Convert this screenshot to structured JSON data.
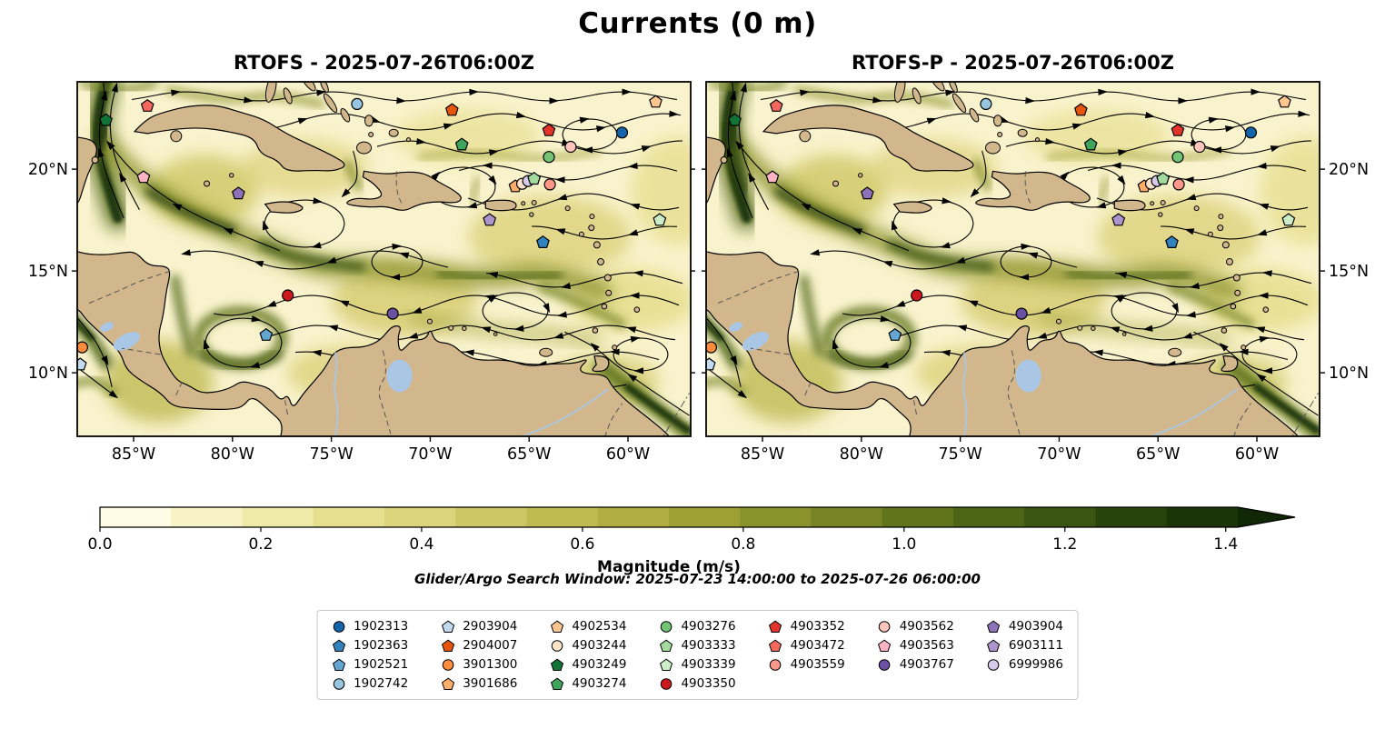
{
  "chart_data": {
    "type": "heatmap",
    "title": "Currents (0 m)",
    "panels": [
      {
        "title": "RTOFS - 2025-07-26T06:00Z"
      },
      {
        "title": "RTOFS-P - 2025-07-26T06:00Z"
      }
    ],
    "x_ticks": [
      "85°W",
      "80°W",
      "75°W",
      "70°W",
      "65°W",
      "60°W"
    ],
    "y_ticks": [
      "20°N",
      "15°N",
      "10°N"
    ],
    "colorbar": {
      "label": "Magnitude (m/s)",
      "ticks": [
        "0.0",
        "0.2",
        "0.4",
        "0.6",
        "0.8",
        "1.0",
        "1.2",
        "1.4"
      ],
      "min": 0.0,
      "extended_max": true
    },
    "subtitle": "Glider/Argo Search Window: 2025-07-23 14:00:00 to 2025-07-26 06:00:00",
    "region": {
      "lon_min": -87.9,
      "lon_max": -56.8,
      "lat_min": 6.9,
      "lat_max": 24.3
    },
    "notes": "Two-panel ocean current magnitude field with streamlines and glider/Argo float positions"
  },
  "axes": {
    "lon_values": [
      -85,
      -80,
      -75,
      -70,
      -65,
      -60
    ],
    "lat_values": [
      20,
      15,
      10
    ]
  },
  "colorbar_style": {
    "colors": [
      "#fdfbe3",
      "#f7f3c6",
      "#f0eaa9",
      "#e7df90",
      "#dcd37a",
      "#cfc765",
      "#c0ba52",
      "#b0ae42",
      "#9ea036",
      "#8a922c",
      "#768424",
      "#61741d",
      "#4d6517",
      "#3a5412",
      "#29430d",
      "#1b3509"
    ],
    "extend_color": "#112806",
    "tick_values": [
      0,
      0.2,
      0.4,
      0.6,
      0.8,
      1.0,
      1.2,
      1.4
    ]
  },
  "map_style": {
    "land": "#d3b78c",
    "ocean": "#f9f3cd",
    "coast": "#000000",
    "lake": "#a9c6e4",
    "river": "#a9c6e4",
    "border": "#555555",
    "streamline": "#000000"
  },
  "legend": {
    "columns": [
      4,
      4,
      4,
      4,
      3,
      3,
      3
    ],
    "items": [
      {
        "id": "1902313",
        "color": "#1464ab",
        "shape": "circle"
      },
      {
        "id": "1902363",
        "color": "#3282be",
        "shape": "pentagon"
      },
      {
        "id": "1902521",
        "color": "#64a6d2",
        "shape": "pentagon"
      },
      {
        "id": "1902742",
        "color": "#97c4df",
        "shape": "circle"
      },
      {
        "id": "2903904",
        "color": "#c3daee",
        "shape": "pentagon"
      },
      {
        "id": "2904007",
        "color": "#e6550d",
        "shape": "pentagon"
      },
      {
        "id": "3901300",
        "color": "#fd8c3c",
        "shape": "circle"
      },
      {
        "id": "3901686",
        "color": "#fdae6b",
        "shape": "pentagon"
      },
      {
        "id": "4902534",
        "color": "#fdc58f",
        "shape": "pentagon"
      },
      {
        "id": "4903244",
        "color": "#fde4c8",
        "shape": "circle"
      },
      {
        "id": "4903249",
        "color": "#117436",
        "shape": "pentagon"
      },
      {
        "id": "4903274",
        "color": "#3fa45c",
        "shape": "pentagon"
      },
      {
        "id": "4903276",
        "color": "#74c476",
        "shape": "circle"
      },
      {
        "id": "4903333",
        "color": "#a3da9d",
        "shape": "pentagon"
      },
      {
        "id": "4903339",
        "color": "#cdecc8",
        "shape": "pentagon"
      },
      {
        "id": "4903350",
        "color": "#cb181d",
        "shape": "circle"
      },
      {
        "id": "4903352",
        "color": "#e3342b",
        "shape": "pentagon"
      },
      {
        "id": "4903472",
        "color": "#f4695c",
        "shape": "pentagon"
      },
      {
        "id": "4903559",
        "color": "#fc9889",
        "shape": "circle"
      },
      {
        "id": "4903562",
        "color": "#fdc5bc",
        "shape": "circle"
      },
      {
        "id": "4903563",
        "color": "#fbb4c4",
        "shape": "pentagon"
      },
      {
        "id": "4903767",
        "color": "#6a51a3",
        "shape": "circle"
      },
      {
        "id": "4903904",
        "color": "#8d72b9",
        "shape": "pentagon"
      },
      {
        "id": "6903111",
        "color": "#ad94cd",
        "shape": "pentagon"
      },
      {
        "id": "6999986",
        "color": "#d7c9e8",
        "shape": "circle"
      }
    ]
  },
  "markers": [
    {
      "id": "4903472",
      "lon": -84.3,
      "lat": 23.1
    },
    {
      "id": "1902742",
      "lon": -73.7,
      "lat": 23.2
    },
    {
      "id": "2904007",
      "lon": -68.9,
      "lat": 22.9
    },
    {
      "id": "4902534",
      "lon": -58.6,
      "lat": 23.3
    },
    {
      "id": "4903352",
      "lon": -64.0,
      "lat": 21.9
    },
    {
      "id": "1902313",
      "lon": -60.3,
      "lat": 21.8
    },
    {
      "id": "4903249",
      "lon": -86.4,
      "lat": 22.4
    },
    {
      "id": "4903274",
      "lon": -68.4,
      "lat": 21.2
    },
    {
      "id": "4903562",
      "lon": -62.9,
      "lat": 21.1
    },
    {
      "id": "4903276",
      "lon": -64.0,
      "lat": 20.6
    },
    {
      "id": "4903563",
      "lon": -84.5,
      "lat": 19.6
    },
    {
      "id": "3901686",
      "lon": -65.7,
      "lat": 19.15
    },
    {
      "id": "4903244",
      "lon": -65.35,
      "lat": 19.28
    },
    {
      "id": "6999986",
      "lon": -65.05,
      "lat": 19.42
    },
    {
      "id": "4903333",
      "lon": -64.75,
      "lat": 19.52
    },
    {
      "id": "4903559",
      "lon": -63.95,
      "lat": 19.25
    },
    {
      "id": "4903904",
      "lon": -79.7,
      "lat": 18.8
    },
    {
      "id": "4903339",
      "lon": -58.4,
      "lat": 17.5
    },
    {
      "id": "6903111",
      "lon": -67.0,
      "lat": 17.5
    },
    {
      "id": "1902363",
      "lon": -64.3,
      "lat": 16.4
    },
    {
      "id": "4903350",
      "lon": -77.2,
      "lat": 13.8
    },
    {
      "id": "4903767",
      "lon": -71.9,
      "lat": 12.9
    },
    {
      "id": "1902521",
      "lon": -78.3,
      "lat": 11.85
    },
    {
      "id": "3901300",
      "lon": -87.6,
      "lat": 11.25
    },
    {
      "id": "2903904",
      "lon": -87.7,
      "lat": 10.4
    }
  ]
}
